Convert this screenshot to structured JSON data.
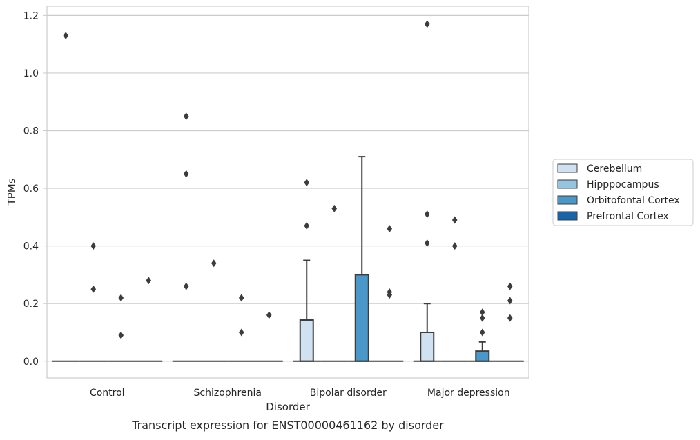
{
  "chart_data": {
    "type": "box",
    "title": "",
    "caption": "Transcript expression for ENST00000461162 by disorder",
    "xlabel": "Disorder",
    "ylabel": "TPMs",
    "ylim": [
      -0.058,
      1.232
    ],
    "yticks": [
      0.0,
      0.2,
      0.4,
      0.6,
      0.8,
      1.0,
      1.2
    ],
    "ytick_labels": [
      "0.0",
      "0.2",
      "0.4",
      "0.6",
      "0.8",
      "1.0",
      "1.2"
    ],
    "grid": "horizontal",
    "legend_position": "right",
    "categories": [
      "Control",
      "Schizophrenia",
      "Bipolar disorder",
      "Major depression"
    ],
    "hues": [
      {
        "name": "Cerebellum",
        "color": "#d0e1f2"
      },
      {
        "name": "Hipppocampus",
        "color": "#94c4df"
      },
      {
        "name": "Orbitofontal Cortex",
        "color": "#4a98c9"
      },
      {
        "name": "Prefrontal Cortex",
        "color": "#1764ab"
      }
    ],
    "boxes": [
      [
        {
          "q1": 0,
          "median": 0,
          "q3": 0,
          "whisker_low": 0,
          "whisker_high": 0,
          "outliers": [
            1.13
          ]
        },
        {
          "q1": 0,
          "median": 0,
          "q3": 0,
          "whisker_low": 0,
          "whisker_high": 0,
          "outliers": [
            0.4,
            0.25
          ]
        },
        {
          "q1": 0,
          "median": 0,
          "q3": 0,
          "whisker_low": 0,
          "whisker_high": 0,
          "outliers": [
            0.22,
            0.09
          ]
        },
        {
          "q1": 0,
          "median": 0,
          "q3": 0,
          "whisker_low": 0,
          "whisker_high": 0,
          "outliers": [
            0.28
          ]
        }
      ],
      [
        {
          "q1": 0,
          "median": 0,
          "q3": 0,
          "whisker_low": 0,
          "whisker_high": 0,
          "outliers": [
            0.85,
            0.65,
            0.26
          ]
        },
        {
          "q1": 0,
          "median": 0,
          "q3": 0,
          "whisker_low": 0,
          "whisker_high": 0,
          "outliers": [
            0.34
          ]
        },
        {
          "q1": 0,
          "median": 0,
          "q3": 0,
          "whisker_low": 0,
          "whisker_high": 0,
          "outliers": [
            0.22,
            0.1
          ]
        },
        {
          "q1": 0,
          "median": 0,
          "q3": 0,
          "whisker_low": 0,
          "whisker_high": 0,
          "outliers": [
            0.16
          ]
        }
      ],
      [
        {
          "q1": 0,
          "median": 0,
          "q3": 0.143,
          "whisker_low": 0,
          "whisker_high": 0.35,
          "outliers": [
            0.62,
            0.47
          ]
        },
        {
          "q1": 0,
          "median": 0,
          "q3": 0,
          "whisker_low": 0,
          "whisker_high": 0,
          "outliers": [
            0.53
          ]
        },
        {
          "q1": 0,
          "median": 0,
          "q3": 0.3,
          "whisker_low": 0,
          "whisker_high": 0.71,
          "outliers": []
        },
        {
          "q1": 0,
          "median": 0,
          "q3": 0,
          "whisker_low": 0,
          "whisker_high": 0,
          "outliers": [
            0.46,
            0.24,
            0.23
          ]
        }
      ],
      [
        {
          "q1": 0,
          "median": 0,
          "q3": 0.1,
          "whisker_low": 0,
          "whisker_high": 0.2,
          "outliers": [
            1.17,
            0.51,
            0.41
          ]
        },
        {
          "q1": 0,
          "median": 0,
          "q3": 0,
          "whisker_low": 0,
          "whisker_high": 0,
          "outliers": [
            0.49,
            0.4
          ]
        },
        {
          "q1": 0,
          "median": 0,
          "q3": 0.035,
          "whisker_low": 0,
          "whisker_high": 0.067,
          "outliers": [
            0.17,
            0.15,
            0.1
          ]
        },
        {
          "q1": 0,
          "median": 0,
          "q3": 0,
          "whisker_low": 0,
          "whisker_high": 0,
          "outliers": [
            0.26,
            0.21,
            0.15
          ]
        }
      ]
    ]
  }
}
